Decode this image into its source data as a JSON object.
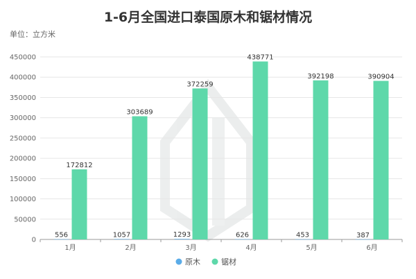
{
  "chart_data": {
    "type": "bar",
    "title": "1-6月全国进口泰国原木和锯材情况",
    "unit_label": "单位：立方米",
    "categories": [
      "1月",
      "2月",
      "3月",
      "4月",
      "5月",
      "6月"
    ],
    "series": [
      {
        "name": "原木",
        "color": "#5aace8",
        "values": [
          556,
          1057,
          1293,
          626,
          453,
          387
        ]
      },
      {
        "name": "锯材",
        "color": "#5ed8aa",
        "values": [
          172812,
          303689,
          372259,
          438771,
          392198,
          390904
        ]
      }
    ],
    "ylim": [
      0,
      450000
    ],
    "yticks": [
      0,
      50000,
      100000,
      150000,
      200000,
      250000,
      300000,
      350000,
      400000,
      450000
    ],
    "grid": true,
    "legend_position": "bottom"
  }
}
